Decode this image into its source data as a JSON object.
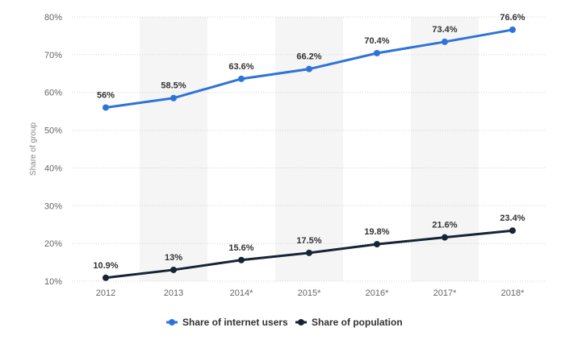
{
  "chart_data": {
    "type": "line",
    "categories": [
      "2012",
      "2013",
      "2014*",
      "2015*",
      "2016*",
      "2017*",
      "2018*"
    ],
    "series": [
      {
        "name": "Share of internet users",
        "values": [
          56,
          58.5,
          63.6,
          66.2,
          70.4,
          73.4,
          76.6
        ],
        "labels": [
          "56%",
          "58.5%",
          "63.6%",
          "66.2%",
          "70.4%",
          "73.4%",
          "76.6%"
        ],
        "color": "#2e73d9"
      },
      {
        "name": "Share of population",
        "values": [
          10.9,
          13,
          15.6,
          17.5,
          19.8,
          21.6,
          23.4
        ],
        "labels": [
          "10.9%",
          "13%",
          "15.6%",
          "17.5%",
          "19.8%",
          "21.6%",
          "23.4%"
        ],
        "color": "#152536"
      }
    ],
    "ylabel": "Share of group",
    "ylim": [
      10,
      80
    ],
    "yticks": [
      "10%",
      "20%",
      "30%",
      "40%",
      "50%",
      "60%",
      "70%",
      "80%"
    ],
    "grid": true,
    "band_color": "#f5f5f5",
    "legend_position": "bottom-center"
  }
}
